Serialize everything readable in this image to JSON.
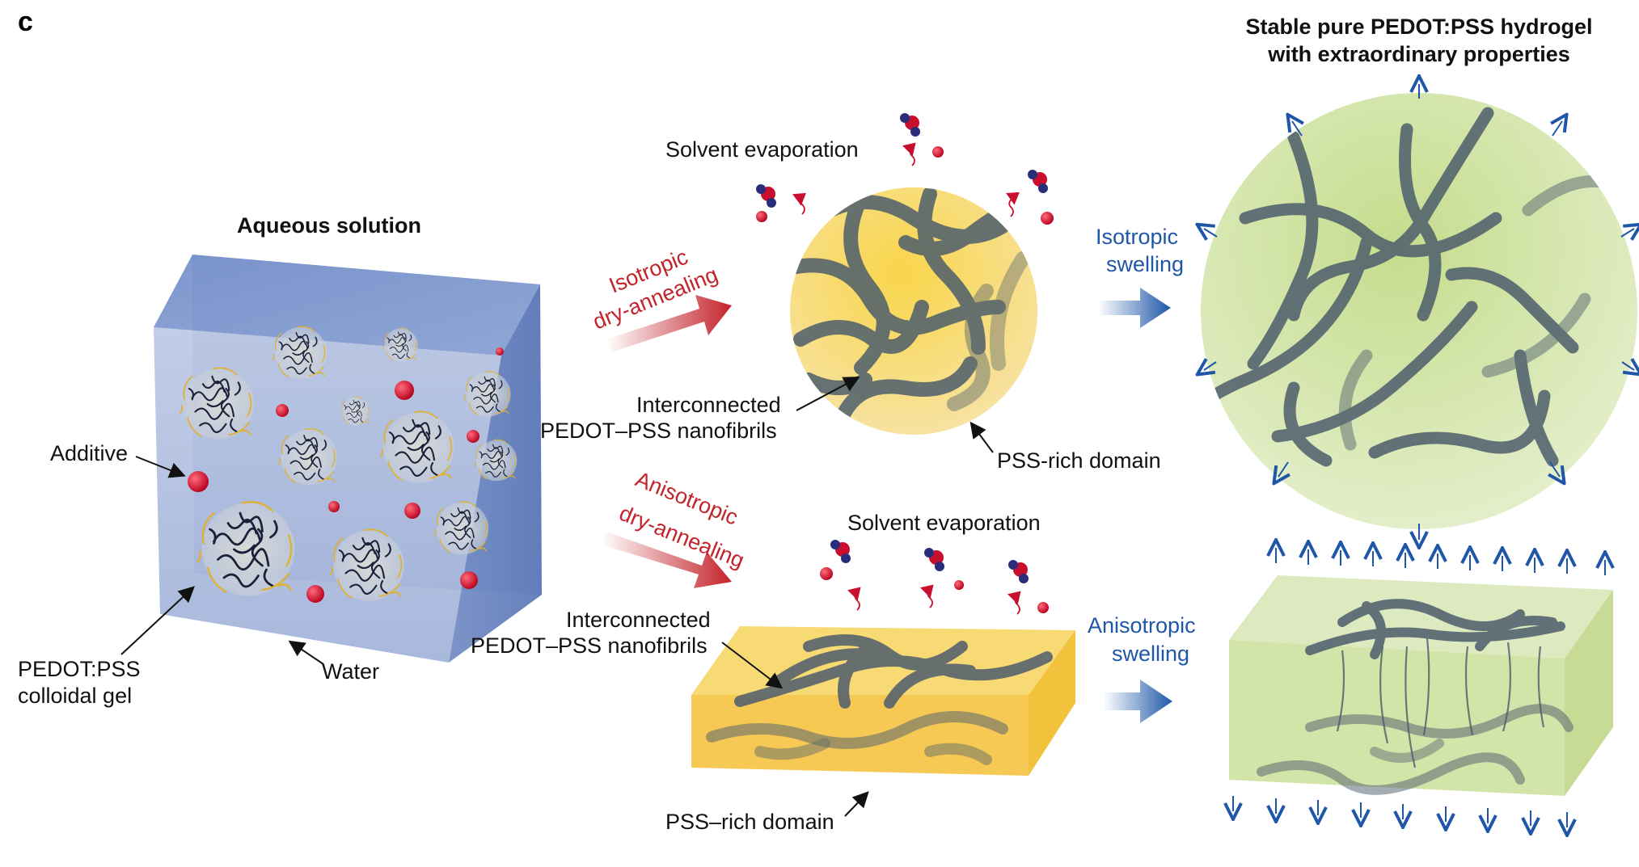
{
  "panel_letter": "c",
  "aqueous": {
    "title": "Aqueous solution",
    "additive_label": "Additive",
    "gel_label_line1": "PEDOT:PSS",
    "gel_label_line2": "colloidal gel",
    "water_label": "Water"
  },
  "isotropic": {
    "process_line1": "Isotropic",
    "process_line2": "dry-annealing",
    "evaporation_label": "Solvent evaporation",
    "fibrils_line1": "Interconnected",
    "fibrils_line2": "PEDOT–PSS nanofibrils",
    "pss_label": "PSS-rich domain",
    "swelling_line1": "Isotropic",
    "swelling_line2": "swelling"
  },
  "anisotropic": {
    "process_line1": "Anisotropic",
    "process_line2": "dry-annealing",
    "evaporation_label": "Solvent evaporation",
    "fibrils_line1": "Interconnected",
    "fibrils_line2": "PEDOT–PSS nanofibrils",
    "pss_label": "PSS–rich domain",
    "swelling_line1": "Anisotropic",
    "swelling_line2": "swelling"
  },
  "result": {
    "title_line1": "Stable pure PEDOT:PSS hydrogel",
    "title_line2": "with extraordinary properties"
  },
  "colors": {
    "water": "#7f96c9",
    "gel_domain": "#f6c84a",
    "hydrogel": "#cfe3a3",
    "fiber": "#4d5d6c",
    "additive": "#c8102e",
    "process_red": "#c3232a",
    "swelling_blue": "#1f57a8"
  },
  "icons": {
    "molecule": "water-molecule-icon",
    "evaporation": "wavy-arrow-icon",
    "expansion": "outward-arrow-icon"
  }
}
